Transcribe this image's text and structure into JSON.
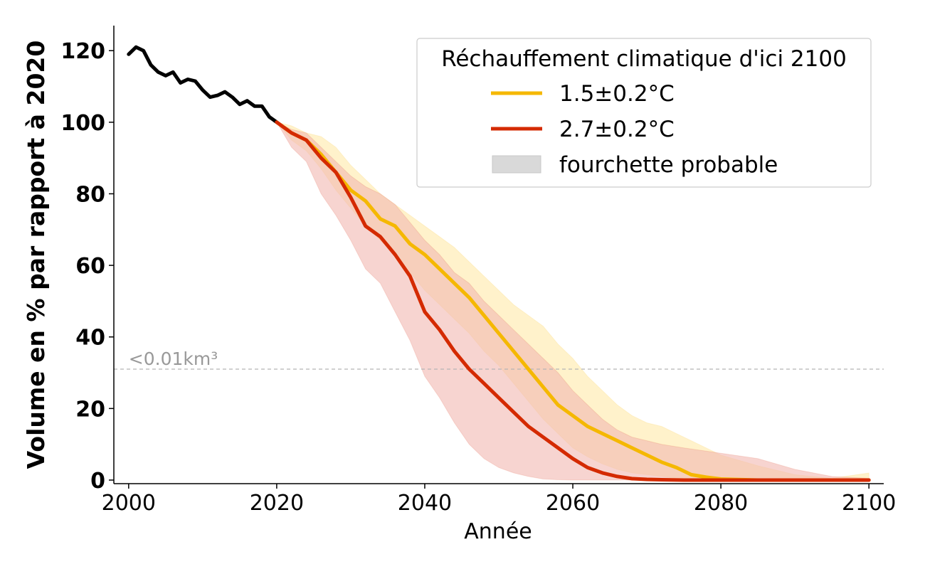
{
  "chart_data": {
    "type": "line",
    "title": "",
    "xlabel": "Année",
    "ylabel": "Volume en % par rapport à 2020",
    "xlim": [
      1998,
      2102
    ],
    "ylim": [
      -1,
      127
    ],
    "x_ticks": [
      2000,
      2020,
      2040,
      2060,
      2080,
      2100
    ],
    "y_ticks": [
      0,
      20,
      40,
      60,
      80,
      100,
      120
    ],
    "grid": false,
    "reference_line": {
      "y": 31,
      "label": "<0.01km³",
      "color": "#b5b5b5"
    },
    "legend": {
      "title": "Réchauffement climatique d'ici 2100",
      "placement": "top-right",
      "entries": [
        {
          "label": "1.5±0.2°C",
          "kind": "line",
          "color": "#f5b800"
        },
        {
          "label": "2.7±0.2°C",
          "kind": "line",
          "color": "#d42a00"
        },
        {
          "label": "fourchette probable",
          "kind": "patch",
          "color": "#d9d9d9"
        }
      ]
    },
    "series": [
      {
        "name": "historical",
        "color": "#000000",
        "x": [
          2000,
          2001,
          2002,
          2003,
          2004,
          2005,
          2006,
          2007,
          2008,
          2009,
          2010,
          2011,
          2012,
          2013,
          2014,
          2015,
          2016,
          2017,
          2018,
          2019,
          2020
        ],
        "y": [
          119,
          121,
          120,
          116,
          114,
          113,
          114,
          111,
          112,
          111.5,
          109,
          107,
          107.5,
          108.5,
          107,
          105,
          106,
          104.5,
          104.5,
          101.5,
          100
        ]
      },
      {
        "name": "1.5±0.2°C",
        "color": "#f5b800",
        "band_color": "#ffe9a8",
        "x": [
          2020,
          2022,
          2024,
          2026,
          2028,
          2030,
          2032,
          2034,
          2036,
          2038,
          2040,
          2042,
          2044,
          2046,
          2048,
          2050,
          2052,
          2054,
          2056,
          2058,
          2060,
          2062,
          2064,
          2066,
          2068,
          2070,
          2072,
          2074,
          2076,
          2078,
          2080,
          2085,
          2090,
          2095,
          2100
        ],
        "y": [
          100,
          97,
          95,
          91,
          86,
          81,
          78,
          73,
          71,
          66,
          63,
          59,
          55,
          51,
          46,
          41,
          36,
          31,
          26,
          21,
          18,
          15,
          13,
          11,
          9,
          7,
          5,
          3.5,
          1.5,
          0.8,
          0.3,
          0,
          0,
          0,
          0
        ],
        "low": [
          100,
          95,
          92,
          87,
          81,
          76,
          71,
          67,
          63,
          58,
          53,
          49,
          45,
          41,
          36,
          32,
          27,
          22,
          17,
          13,
          9,
          6.5,
          4.5,
          3,
          2,
          1.5,
          1,
          0.5,
          0.3,
          0.1,
          0,
          0,
          0,
          0,
          0
        ],
        "high": [
          100,
          99,
          97,
          96,
          93,
          88,
          84,
          80,
          77,
          74,
          71,
          68,
          65,
          61,
          57,
          53,
          49,
          46,
          43,
          38,
          34,
          29,
          25,
          21,
          18,
          16,
          15,
          13,
          11,
          9,
          7,
          4,
          1.5,
          0.5,
          2
        ]
      },
      {
        "name": "2.7±0.2°C",
        "color": "#d42a00",
        "band_color": "#f2b8b0",
        "x": [
          2020,
          2022,
          2024,
          2026,
          2028,
          2030,
          2032,
          2034,
          2036,
          2038,
          2040,
          2042,
          2044,
          2046,
          2048,
          2050,
          2052,
          2054,
          2056,
          2058,
          2060,
          2062,
          2064,
          2066,
          2068,
          2070,
          2072,
          2075,
          2080,
          2085,
          2090,
          2095,
          2100
        ],
        "y": [
          100,
          97,
          95,
          90,
          86,
          79,
          71,
          68,
          63,
          57,
          47,
          42,
          36,
          31,
          27,
          23,
          19,
          15,
          12,
          9,
          6,
          3.5,
          2,
          1,
          0.4,
          0.2,
          0.1,
          0,
          0,
          0,
          0,
          0,
          0
        ],
        "low": [
          100,
          93,
          89,
          80,
          74,
          67,
          59,
          55,
          47,
          39,
          29,
          23,
          16,
          10,
          6,
          3.5,
          2,
          1,
          0.3,
          0.1,
          0,
          0,
          0,
          0,
          0,
          0,
          0,
          0,
          0,
          0,
          0,
          0,
          0
        ],
        "high": [
          100,
          98,
          97,
          93,
          89,
          85,
          82,
          80,
          77,
          72,
          67,
          63,
          58,
          55,
          50,
          46,
          42,
          38,
          34,
          30,
          25,
          21,
          17,
          14,
          12,
          11,
          10,
          9,
          7.5,
          6,
          3,
          1,
          0.5
        ]
      }
    ]
  }
}
